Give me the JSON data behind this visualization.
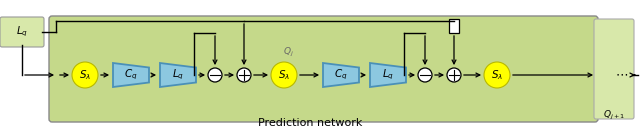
{
  "fig_width": 6.4,
  "fig_height": 1.33,
  "dpi": 100,
  "bg_green": "#c5d98a",
  "bg_light_green": "#d8e8aa",
  "yellow": "#ffff00",
  "yellow_edge": "#b8b800",
  "blue_fill": "#8cc8e0",
  "blue_edge": "#4a90b8",
  "title": "Prediction network",
  "label_font": 7.5,
  "small_font": 6.5
}
